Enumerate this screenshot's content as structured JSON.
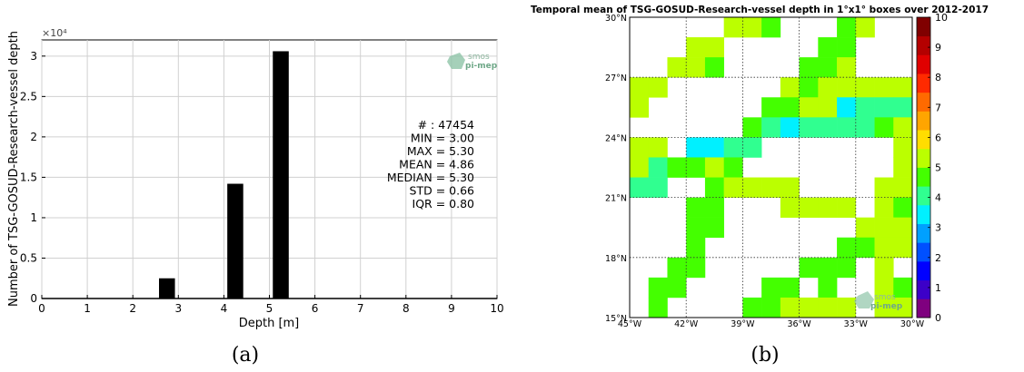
{
  "captions": {
    "a": "(a)",
    "b": "(b)"
  },
  "chart_data": [
    {
      "type": "bar",
      "title": "",
      "xlabel": "Depth [m]",
      "ylabel": "Number of TSG-GOSUD-Research-vessel depth",
      "y_multiplier_label": "×10⁴",
      "xlim": [
        0,
        10
      ],
      "ylim": [
        0,
        32000
      ],
      "xticks": [
        "0",
        "1",
        "2",
        "3",
        "4",
        "5",
        "6",
        "7",
        "8",
        "9",
        "10"
      ],
      "yticks": [
        "0",
        "0.5",
        "1",
        "1.5",
        "2",
        "2.5",
        "3"
      ],
      "bar_width": 0.35,
      "bars": [
        {
          "x": 2.75,
          "value": 2500
        },
        {
          "x": 4.25,
          "value": 14200
        },
        {
          "x": 5.25,
          "value": 30600
        }
      ],
      "bar_color": "#000000",
      "stats": [
        "# : 47454",
        "MIN = 3.00",
        "MAX =  5.30",
        "MEAN = 4.86",
        "MEDIAN = 5.30",
        "STD = 0.66",
        "IQR = 0.80"
      ],
      "logo": [
        "smos",
        "pi-mep"
      ],
      "grid": true
    },
    {
      "type": "heatmap",
      "title": "Temporal mean of TSG-GOSUD-Research-vessel depth in 1°x1° boxes over 2012-2017",
      "xlim": [
        -45,
        -30
      ],
      "ylim": [
        15,
        30
      ],
      "xticks": [
        "45°W",
        "42°W",
        "39°W",
        "36°W",
        "33°W",
        "30°W"
      ],
      "yticks": [
        "15°N",
        "18°N",
        "21°N",
        "24°N",
        "27°N",
        "30°N"
      ],
      "colorbar_range": [
        0,
        10
      ],
      "colorbar_ticks": [
        "0",
        "1",
        "2",
        "3",
        "4",
        "5",
        "6",
        "7",
        "8",
        "9",
        "10"
      ],
      "colorbar_colors": [
        "#7f007f",
        "#3c00c8",
        "#0000ff",
        "#0050ff",
        "#00a0ff",
        "#00f0ff",
        "#30ff90",
        "#44ff00",
        "#bbff00",
        "#ffdd00",
        "#ffa500",
        "#ff6a00",
        "#ff2a00",
        "#e00000",
        "#b40000",
        "#800000"
      ],
      "rows": [
        {
          "lat": 29,
          "cells": [
            [
              -40,
              5.1
            ],
            [
              -39,
              5.1
            ],
            [
              -38,
              4.9
            ],
            [
              -34,
              4.7
            ],
            [
              -33,
              5.0
            ]
          ]
        },
        {
          "lat": 28,
          "cells": [
            [
              -42,
              5.3
            ],
            [
              -41,
              5.1
            ],
            [
              -35,
              4.9
            ],
            [
              -34,
              4.9
            ]
          ]
        },
        {
          "lat": 27,
          "cells": [
            [
              -43,
              5.1
            ],
            [
              -42,
              5.2
            ],
            [
              -41,
              4.8
            ],
            [
              -36,
              4.7
            ],
            [
              -35,
              4.6
            ],
            [
              -34,
              5.0
            ]
          ]
        },
        {
          "lat": 26,
          "cells": [
            [
              -45,
              5.2
            ],
            [
              -44,
              5.2
            ],
            [
              -37,
              5.1
            ],
            [
              -36,
              4.6
            ],
            [
              -35,
              5.0
            ],
            [
              -34,
              5.1
            ],
            [
              -33,
              5.0
            ],
            [
              -32,
              5.1
            ],
            [
              -31,
              5.1
            ]
          ]
        },
        {
          "lat": 25,
          "cells": [
            [
              -45,
              5.2
            ],
            [
              -38,
              4.8
            ],
            [
              -37,
              4.8
            ],
            [
              -36,
              5.0
            ],
            [
              -35,
              5.0
            ],
            [
              -34,
              3.5
            ],
            [
              -33,
              4.1
            ],
            [
              -32,
              4.1
            ],
            [
              -31,
              4.1
            ]
          ]
        },
        {
          "lat": 24,
          "cells": [
            [
              -39,
              4.8
            ],
            [
              -38,
              4.2
            ],
            [
              -37,
              3.6
            ],
            [
              -36,
              4.1
            ],
            [
              -35,
              4.1
            ],
            [
              -34,
              4.1
            ],
            [
              -33,
              4.1
            ],
            [
              -32,
              4.6
            ],
            [
              -31,
              5.1
            ]
          ]
        },
        {
          "lat": 23,
          "cells": [
            [
              -45,
              5.2
            ],
            [
              -44,
              5.2
            ],
            [
              -42,
              3.5
            ],
            [
              -41,
              3.5
            ],
            [
              -40,
              4.2
            ],
            [
              -39,
              4.3
            ],
            [
              -31,
              5.1
            ]
          ]
        },
        {
          "lat": 22,
          "cells": [
            [
              -45,
              5.2
            ],
            [
              -44,
              4.1
            ],
            [
              -43,
              4.4
            ],
            [
              -42,
              4.6
            ],
            [
              -41,
              5.1
            ],
            [
              -40,
              4.5
            ],
            [
              -31,
              5.1
            ]
          ]
        },
        {
          "lat": 21,
          "cells": [
            [
              -45,
              4.1
            ],
            [
              -44,
              4.1
            ],
            [
              -41,
              4.6
            ],
            [
              -40,
              5.1
            ],
            [
              -39,
              5.1
            ],
            [
              -38,
              5.1
            ],
            [
              -37,
              5.1
            ],
            [
              -32,
              5.1
            ],
            [
              -31,
              5.1
            ]
          ]
        },
        {
          "lat": 20,
          "cells": [
            [
              -42,
              4.7
            ],
            [
              -41,
              4.7
            ],
            [
              -37,
              5.1
            ],
            [
              -36,
              5.1
            ],
            [
              -35,
              5.1
            ],
            [
              -34,
              5.1
            ],
            [
              -32,
              5.1
            ],
            [
              -31,
              4.5
            ]
          ]
        },
        {
          "lat": 19,
          "cells": [
            [
              -42,
              4.7
            ],
            [
              -41,
              4.6
            ],
            [
              -33,
              5.1
            ],
            [
              -32,
              5.1
            ],
            [
              -31,
              5.1
            ]
          ]
        },
        {
          "lat": 18,
          "cells": [
            [
              -42,
              4.7
            ],
            [
              -34,
              4.7
            ],
            [
              -33,
              4.8
            ],
            [
              -32,
              5.1
            ],
            [
              -31,
              5.1
            ]
          ]
        },
        {
          "lat": 17,
          "cells": [
            [
              -43,
              4.7
            ],
            [
              -42,
              4.7
            ],
            [
              -36,
              4.7
            ],
            [
              -35,
              4.7
            ],
            [
              -34,
              4.7
            ],
            [
              -32,
              5.1
            ]
          ]
        },
        {
          "lat": 16,
          "cells": [
            [
              -44,
              4.7
            ],
            [
              -43,
              4.7
            ],
            [
              -38,
              4.7
            ],
            [
              -37,
              4.7
            ],
            [
              -35,
              4.7
            ],
            [
              -32,
              5.1
            ],
            [
              -31,
              4.8
            ]
          ]
        },
        {
          "lat": 15,
          "cells": [
            [
              -44,
              4.7
            ],
            [
              -39,
              4.7
            ],
            [
              -38,
              4.7
            ],
            [
              -37,
              5.1
            ],
            [
              -36,
              5.1
            ],
            [
              -35,
              5.1
            ],
            [
              -34,
              5.1
            ],
            [
              -32,
              5.0
            ],
            [
              -31,
              5.1
            ]
          ]
        }
      ],
      "logo": [
        "smos",
        "pi-mep"
      ],
      "grid": true
    }
  ]
}
